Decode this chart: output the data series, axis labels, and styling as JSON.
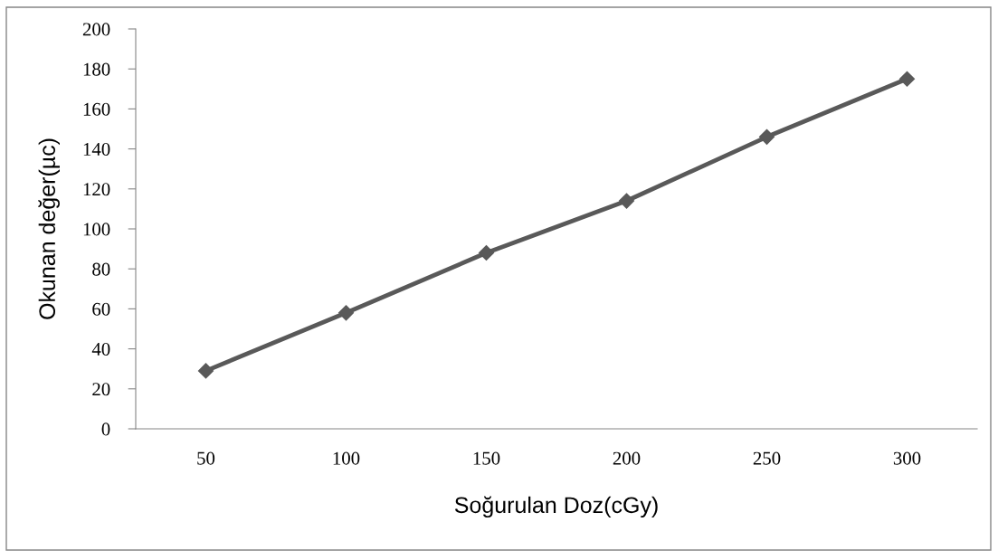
{
  "chart_data": {
    "type": "line",
    "xlabel": "Soğurulan Doz(cGy)",
    "ylabel": "Okunan değer(µc)",
    "categories": [
      "50",
      "100",
      "150",
      "200",
      "250",
      "300"
    ],
    "series": [
      {
        "color": "#595959",
        "values": [
          29,
          58,
          88,
          114,
          146,
          175
        ]
      }
    ],
    "ylim": [
      0,
      200
    ],
    "yticks": [
      0,
      20,
      40,
      60,
      80,
      100,
      120,
      140,
      160,
      180,
      200
    ],
    "marker": "diamond",
    "line_style": "solid",
    "grid": false
  }
}
